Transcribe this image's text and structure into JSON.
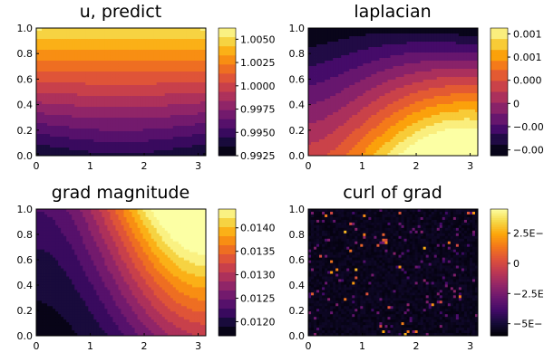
{
  "chart_data": [
    {
      "type": "heatmap",
      "title": "u, predict",
      "xticks": [
        "0",
        "1",
        "2",
        "3"
      ],
      "xtick_values": [
        0,
        1,
        2,
        3
      ],
      "yticks": [
        "0.0",
        "0.2",
        "0.4",
        "0.6",
        "0.8",
        "1.0"
      ],
      "ytick_values": [
        0,
        0.2,
        0.4,
        0.6,
        0.8,
        1.0
      ],
      "xlim": [
        0,
        3.14159
      ],
      "ylim": [
        0,
        1
      ],
      "colorbar_ticks": [
        "0.9925",
        "0.9950",
        "0.9975",
        "1.0000",
        "1.0025",
        "1.0050"
      ],
      "colorbar_values": [
        0.9925,
        0.995,
        0.9975,
        1.0,
        1.0025,
        1.005
      ],
      "clim": [
        0.9925,
        1.0062
      ],
      "colormap": "inferno",
      "contour_levels": 14
    },
    {
      "type": "heatmap",
      "title": "laplacian",
      "xticks": [
        "0",
        "1",
        "2",
        "3"
      ],
      "xtick_values": [
        0,
        1,
        2,
        3
      ],
      "yticks": [
        "0.0",
        "0.2",
        "0.4",
        "0.6",
        "0.8",
        "1.0"
      ],
      "ytick_values": [
        0,
        0.2,
        0.4,
        0.6,
        0.8,
        1.0
      ],
      "xlim": [
        0,
        3.14159
      ],
      "ylim": [
        0,
        1
      ],
      "colorbar_ticks": [
        "0.001",
        "0.001",
        "0.000",
        "0",
        "−0.00",
        "−0.00"
      ],
      "colorbar_values": [
        1.0,
        0.8,
        0.6,
        0.4,
        0.2,
        0.0
      ],
      "clim": [
        -0.05,
        1.05
      ],
      "colormap": "inferno",
      "contour_levels": 12
    },
    {
      "type": "heatmap",
      "title": "grad magnitude",
      "xticks": [
        "0",
        "1",
        "2",
        "3"
      ],
      "xtick_values": [
        0,
        1,
        2,
        3
      ],
      "yticks": [
        "0.0",
        "0.2",
        "0.4",
        "0.6",
        "0.8",
        "1.0"
      ],
      "ytick_values": [
        0,
        0.2,
        0.4,
        0.6,
        0.8,
        1.0
      ],
      "xlim": [
        0,
        3.14159
      ],
      "ylim": [
        0,
        1
      ],
      "colorbar_ticks": [
        "0.0120",
        "0.0125",
        "0.0130",
        "0.0135",
        "0.0140"
      ],
      "colorbar_values": [
        0.012,
        0.0125,
        0.013,
        0.0135,
        0.014
      ],
      "clim": [
        0.0117,
        0.0144
      ],
      "colormap": "inferno",
      "contour_levels": 14
    },
    {
      "type": "heatmap",
      "title": "curl of grad",
      "xticks": [
        "0",
        "1",
        "2",
        "3"
      ],
      "xtick_values": [
        0,
        1,
        2,
        3
      ],
      "yticks": [
        "0.0",
        "0.2",
        "0.4",
        "0.6",
        "0.8",
        "1.0"
      ],
      "ytick_values": [
        0,
        0.2,
        0.4,
        0.6,
        0.8,
        1.0
      ],
      "xlim": [
        0,
        3.14159
      ],
      "ylim": [
        0,
        1
      ],
      "colorbar_ticks": [
        "2.5E−",
        "0",
        "−2.5E",
        "−5E−"
      ],
      "colorbar_values": [
        2.5,
        0,
        -2.5,
        -5
      ],
      "clim": [
        -6,
        4.5
      ],
      "colormap": "inferno",
      "noise": true
    }
  ]
}
